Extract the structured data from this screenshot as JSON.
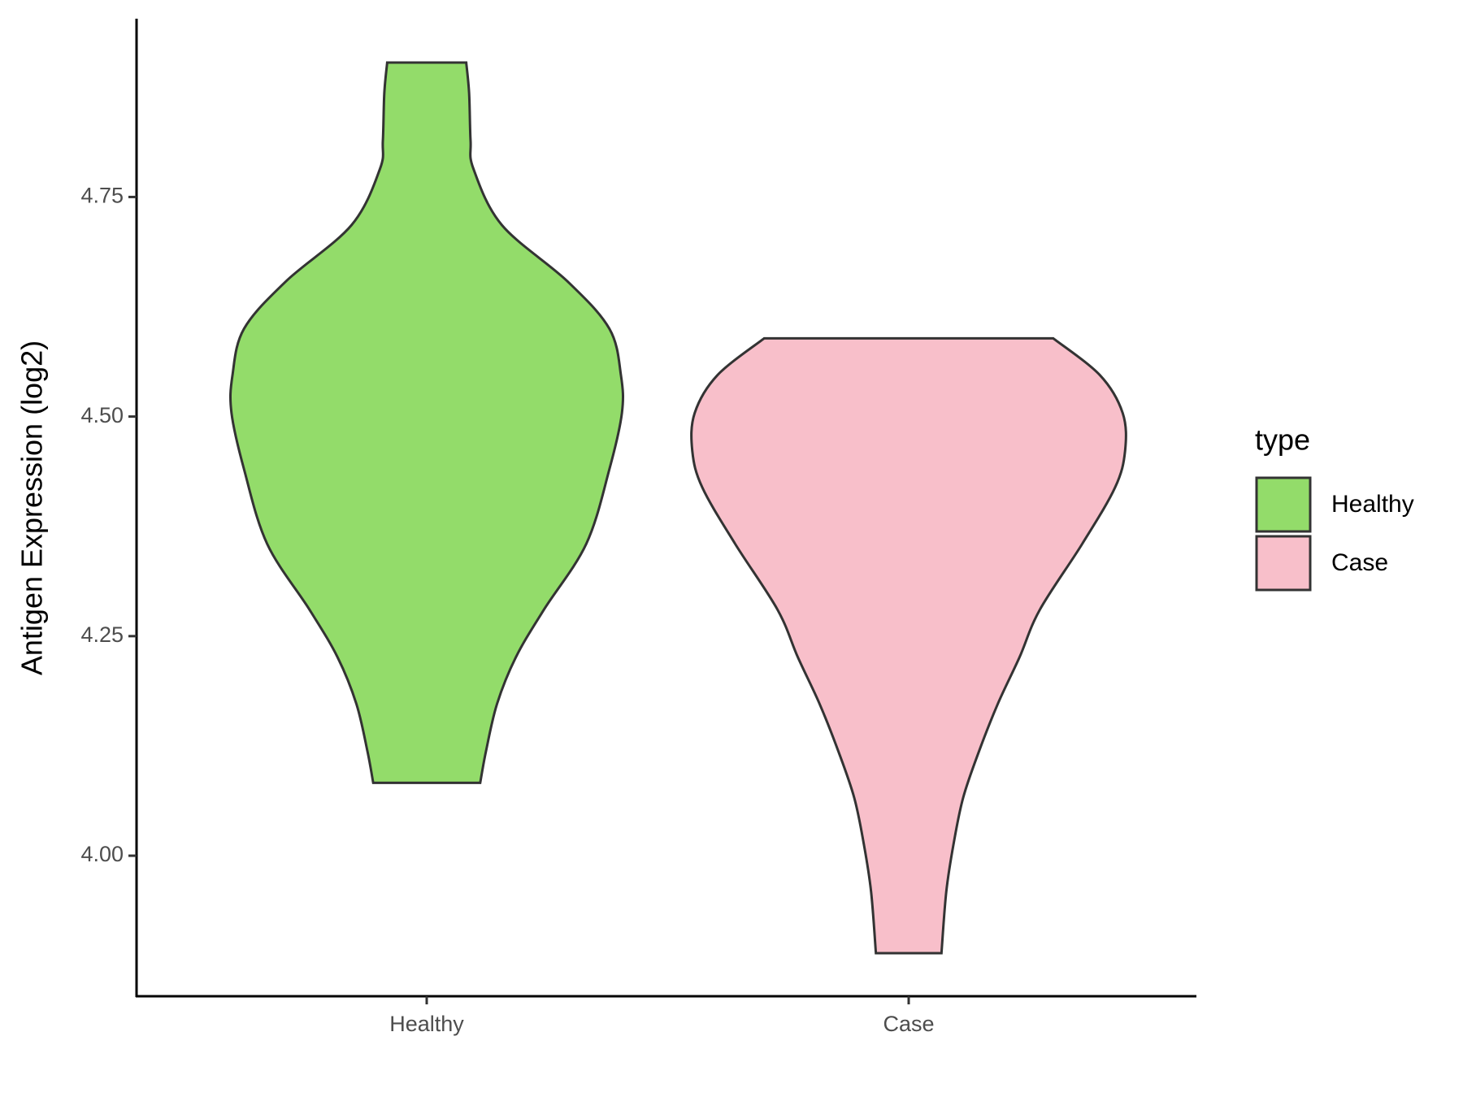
{
  "chart_data": {
    "type": "violin",
    "y_label": "Antigen Expression (log2)",
    "categories": [
      "Healthy",
      "Case"
    ],
    "ylim": [
      3.84,
      4.953
    ],
    "yticks": [
      {
        "value": 4,
        "label": "4.00"
      },
      {
        "value": 4.25,
        "label": "4.25"
      },
      {
        "value": 4.5,
        "label": "4.50"
      },
      {
        "value": 4.75,
        "label": "4.75"
      }
    ],
    "legend_title": "type",
    "series": [
      {
        "name": "Healthy",
        "color": "#93dc6a",
        "y": [
          4.903,
          4.868,
          4.814,
          4.782,
          4.718,
          4.654,
          4.6,
          4.547,
          4.504,
          4.44,
          4.355,
          4.28,
          4.226,
          4.173,
          4.119,
          4.083
        ],
        "half_width": [
          0.082,
          0.088,
          0.091,
          0.097,
          0.156,
          0.292,
          0.379,
          0.403,
          0.405,
          0.379,
          0.331,
          0.243,
          0.185,
          0.146,
          0.123,
          0.111
        ]
      },
      {
        "name": "Case",
        "color": "#f8bfca",
        "y": [
          4.589,
          4.547,
          4.504,
          4.461,
          4.419,
          4.355,
          4.28,
          4.226,
          4.173,
          4.119,
          4.066,
          4.013,
          3.959,
          3.889
        ],
        "half_width": [
          0.3,
          0.397,
          0.444,
          0.449,
          0.428,
          0.36,
          0.272,
          0.23,
          0.185,
          0.146,
          0.113,
          0.093,
          0.078,
          0.068
        ]
      }
    ]
  }
}
